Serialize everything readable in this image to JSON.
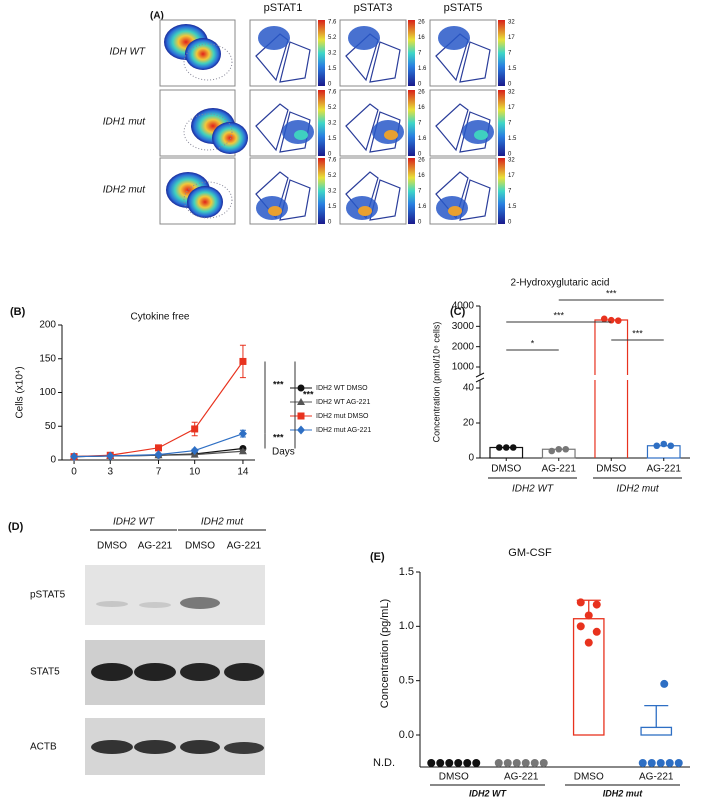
{
  "panel_a": {
    "label": "(A)",
    "columns": [
      "pSTAT1",
      "pSTAT3",
      "pSTAT5"
    ],
    "rows": [
      "IDH WT",
      "IDH1 mut",
      "IDH2 mut"
    ],
    "scales": [
      {
        "ticks": [
          0,
          1.5,
          3.2,
          5.2,
          7.6
        ]
      },
      {
        "ticks": [
          0,
          1.6,
          7,
          16,
          26
        ]
      },
      {
        "ticks": [
          0,
          1.5,
          7,
          17,
          32
        ]
      }
    ]
  },
  "panel_d": {
    "label": "(D)",
    "groups": [
      "IDH2 WT",
      "IDH2 mut"
    ],
    "lanes": [
      "DMSO",
      "AG-221",
      "DMSO",
      "AG-221"
    ],
    "rows": [
      "pSTAT5",
      "STAT5",
      "ACTB"
    ]
  },
  "chart_data": [
    {
      "type": "line",
      "panel": "(B)",
      "title": "Cytokine free",
      "y_label": "Cells (x10⁴)",
      "x_label": "Days",
      "x": [
        0,
        3,
        7,
        10,
        14
      ],
      "xlim": [
        -1,
        15
      ],
      "xticks": [
        0,
        3,
        7,
        10,
        14
      ],
      "ylim": [
        0,
        200
      ],
      "yticks": [
        0,
        50,
        100,
        150,
        200
      ],
      "series": [
        {
          "name": "IDH2 WT DMSO",
          "color": "#111111",
          "marker": "circle",
          "values": [
            5,
            6,
            7,
            9,
            17
          ],
          "errors": [
            0,
            0,
            1,
            1,
            2
          ]
        },
        {
          "name": "IDH2 WT AG-221",
          "color": "#555555",
          "marker": "triangle",
          "values": [
            5,
            6,
            7,
            8,
            13
          ],
          "errors": [
            0,
            0,
            1,
            1,
            2
          ]
        },
        {
          "name": "IDH2 mut DMSO",
          "color": "#e8321e",
          "marker": "square",
          "values": [
            5,
            7,
            18,
            46,
            146
          ],
          "errors": [
            0,
            1,
            2,
            10,
            24
          ]
        },
        {
          "name": "IDH2 mut AG-221",
          "color": "#2e6fc4",
          "marker": "diamond",
          "values": [
            5,
            6,
            8,
            14,
            39
          ],
          "errors": [
            0,
            0,
            1,
            2,
            5
          ]
        }
      ],
      "annotations": [
        "***",
        "***",
        "***"
      ]
    },
    {
      "type": "broken_bar",
      "panel": "(C)",
      "title": "2-Hydroxyglutaric acid",
      "y_label": "Concentration (pmol/10⁶ cells)",
      "categories": [
        "DMSO",
        "AG-221",
        "DMSO",
        "AG-221"
      ],
      "groups": [
        "IDH2 WT",
        "IDH2 mut"
      ],
      "ylim_lower": [
        0,
        40
      ],
      "yticks_lower": [
        0,
        20,
        40
      ],
      "ylim_upper": [
        1000,
        4000
      ],
      "yticks_upper": [
        1000,
        2000,
        3000,
        4000
      ],
      "values": [
        6,
        5,
        3310,
        7
      ],
      "colors": [
        "#111111",
        "#777777",
        "#e8321e",
        "#2e6fc4"
      ],
      "points": [
        [
          6,
          6,
          6
        ],
        [
          4,
          5,
          5
        ],
        [
          3370,
          3300,
          3280
        ],
        [
          7,
          8,
          7
        ]
      ],
      "annotations": [
        "*",
        "***",
        "***",
        "***"
      ]
    },
    {
      "type": "dot_bar",
      "panel": "(E)",
      "title": "GM-CSF",
      "y_label": "Concentration (pg/mL)",
      "nd_label": "N.D.",
      "categories": [
        "DMSO",
        "AG-221",
        "DMSO",
        "AG-221"
      ],
      "groups": [
        "IDH2 WT",
        "IDH2 mut"
      ],
      "ylim": [
        0,
        1.5
      ],
      "yticks": [
        {
          "value": 0,
          "label": "0.0"
        },
        {
          "value": 0.5,
          "label": "0.5"
        },
        {
          "value": 1,
          "label": "1.0"
        },
        {
          "value": 1.5,
          "label": "1.5"
        }
      ],
      "values": [
        null,
        null,
        1.07,
        0.07
      ],
      "errors": [
        null,
        null,
        0.17,
        0.2
      ],
      "colors": [
        "#111111",
        "#777777",
        "#e8321e",
        "#2e6fc4"
      ],
      "points": [
        [
          null,
          null,
          null,
          null,
          null,
          null
        ],
        [
          null,
          null,
          null,
          null,
          null,
          null
        ],
        [
          1.22,
          1.2,
          1.1,
          1.0,
          0.95,
          0.85
        ],
        [
          0.47,
          null,
          null,
          null,
          null,
          null
        ]
      ]
    }
  ]
}
